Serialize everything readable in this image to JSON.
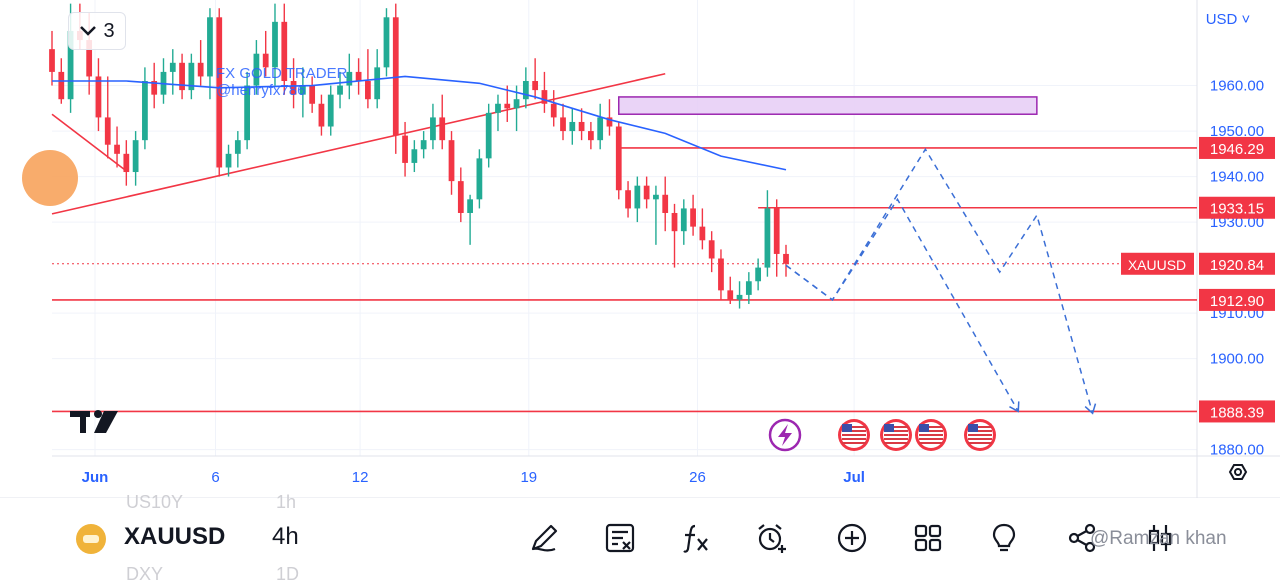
{
  "chart_data": {
    "type": "candlestick",
    "symbol": "XAUUSD",
    "timeframe": "4h",
    "currency": "USD",
    "y_ticks": [
      1960,
      1950,
      1940,
      1930,
      1910,
      1900,
      1880
    ],
    "ylim": [
      1878.6,
      1978.8
    ],
    "x_ticks": [
      {
        "label": "Jun",
        "pos": 0
      },
      {
        "label": "6",
        "pos": 5
      },
      {
        "label": "12",
        "pos": 11
      },
      {
        "label": "19",
        "pos": 18
      },
      {
        "label": "26",
        "pos": 25
      },
      {
        "label": "Jul",
        "pos": 31.5
      }
    ],
    "ohlc": [
      [
        1968.0,
        1972.0,
        1960.0,
        1963.0
      ],
      [
        1963.0,
        1966.0,
        1956.0,
        1957.0
      ],
      [
        1957.0,
        1978.0,
        1954.0,
        1972.0
      ],
      [
        1972.0,
        1978.0,
        1968.0,
        1970.0
      ],
      [
        1970.0,
        1976.0,
        1958.0,
        1962.0
      ],
      [
        1962.0,
        1966.0,
        1950.0,
        1953.0
      ],
      [
        1953.0,
        1962.0,
        1944.0,
        1947.0
      ],
      [
        1947.0,
        1951.0,
        1942.0,
        1945.0
      ],
      [
        1945.0,
        1948.0,
        1938.0,
        1941.0
      ],
      [
        1941.0,
        1950.0,
        1938.0,
        1948.0
      ],
      [
        1948.0,
        1964.0,
        1946.0,
        1961.0
      ],
      [
        1961.0,
        1965.0,
        1955.0,
        1958.0
      ],
      [
        1958.0,
        1966.0,
        1956.0,
        1963.0
      ],
      [
        1963.0,
        1968.0,
        1958.0,
        1965.0
      ],
      [
        1965.0,
        1967.0,
        1957.0,
        1959.0
      ],
      [
        1959.0,
        1967.0,
        1957.0,
        1965.0
      ],
      [
        1965.0,
        1970.0,
        1960.0,
        1962.0
      ],
      [
        1962.0,
        1977.0,
        1957.0,
        1975.0
      ],
      [
        1975.0,
        1977.0,
        1940.0,
        1942.0
      ],
      [
        1942.0,
        1947.0,
        1940.0,
        1945.0
      ],
      [
        1945.0,
        1950.0,
        1942.0,
        1948.0
      ],
      [
        1948.0,
        1963.0,
        1946.0,
        1960.0
      ],
      [
        1960.0,
        1970.0,
        1958.0,
        1967.0
      ],
      [
        1967.0,
        1972.0,
        1962.0,
        1964.0
      ],
      [
        1964.0,
        1978.0,
        1960.0,
        1974.0
      ],
      [
        1974.0,
        1978.0,
        1958.0,
        1961.0
      ],
      [
        1961.0,
        1966.0,
        1955.0,
        1958.0
      ],
      [
        1958.0,
        1964.0,
        1953.0,
        1960.0
      ],
      [
        1960.0,
        1962.0,
        1954.0,
        1956.0
      ],
      [
        1956.0,
        1958.0,
        1949.0,
        1951.0
      ],
      [
        1951.0,
        1960.0,
        1949.0,
        1958.0
      ],
      [
        1958.0,
        1963.0,
        1955.0,
        1960.0
      ],
      [
        1960.0,
        1967.0,
        1957.0,
        1963.0
      ],
      [
        1963.0,
        1966.0,
        1958.0,
        1961.0
      ],
      [
        1961.0,
        1968.0,
        1955.0,
        1957.0
      ],
      [
        1957.0,
        1968.0,
        1955.0,
        1964.0
      ],
      [
        1964.0,
        1977.0,
        1962.0,
        1975.0
      ],
      [
        1975.0,
        1978.0,
        1945.0,
        1949.0
      ],
      [
        1949.0,
        1952.0,
        1940.0,
        1943.0
      ],
      [
        1943.0,
        1948.0,
        1941.0,
        1946.0
      ],
      [
        1946.0,
        1950.0,
        1944.0,
        1948.0
      ],
      [
        1948.0,
        1956.0,
        1946.0,
        1953.0
      ],
      [
        1953.0,
        1958.0,
        1946.0,
        1948.0
      ],
      [
        1948.0,
        1950.0,
        1936.0,
        1939.0
      ],
      [
        1939.0,
        1942.0,
        1930.0,
        1932.0
      ],
      [
        1932.0,
        1936.0,
        1925.0,
        1935.0
      ],
      [
        1935.0,
        1946.0,
        1933.0,
        1944.0
      ],
      [
        1944.0,
        1956.0,
        1942.0,
        1954.0
      ],
      [
        1954.0,
        1958.0,
        1950.0,
        1956.0
      ],
      [
        1956.0,
        1960.0,
        1952.0,
        1955.0
      ],
      [
        1955.0,
        1960.0,
        1950.0,
        1957.0
      ],
      [
        1957.0,
        1964.0,
        1955.0,
        1961.0
      ],
      [
        1961.0,
        1966.0,
        1957.0,
        1959.0
      ],
      [
        1959.0,
        1963.0,
        1954.0,
        1956.0
      ],
      [
        1956.0,
        1959.0,
        1951.0,
        1953.0
      ],
      [
        1953.0,
        1956.0,
        1948.0,
        1950.0
      ],
      [
        1950.0,
        1955.0,
        1947.0,
        1952.0
      ],
      [
        1952.0,
        1955.0,
        1948.0,
        1950.0
      ],
      [
        1950.0,
        1952.0,
        1946.0,
        1948.0
      ],
      [
        1948.0,
        1956.0,
        1946.0,
        1953.0
      ],
      [
        1953.0,
        1957.0,
        1949.0,
        1951.0
      ],
      [
        1951.0,
        1952.0,
        1935.0,
        1937.0
      ],
      [
        1937.0,
        1939.0,
        1931.0,
        1933.0
      ],
      [
        1933.0,
        1940.0,
        1930.0,
        1938.0
      ],
      [
        1938.0,
        1940.0,
        1933.0,
        1935.0
      ],
      [
        1935.0,
        1938.0,
        1925.0,
        1936.0
      ],
      [
        1936.0,
        1940.0,
        1928.0,
        1932.0
      ],
      [
        1932.0,
        1934.0,
        1920.0,
        1928.0
      ],
      [
        1928.0,
        1935.0,
        1925.0,
        1933.0
      ],
      [
        1933.0,
        1936.0,
        1927.0,
        1929.0
      ],
      [
        1929.0,
        1933.0,
        1924.0,
        1926.0
      ],
      [
        1926.0,
        1928.0,
        1919.0,
        1922.0
      ],
      [
        1922.0,
        1924.0,
        1913.0,
        1915.0
      ],
      [
        1915.0,
        1918.0,
        1912.0,
        1913.0
      ],
      [
        1913.0,
        1917.0,
        1911.0,
        1914.0
      ],
      [
        1914.0,
        1919.0,
        1912.0,
        1917.0
      ],
      [
        1917.0,
        1922.0,
        1915.0,
        1920.0
      ],
      [
        1920.0,
        1937.0,
        1918.0,
        1933.0
      ],
      [
        1933.0,
        1935.0,
        1918.0,
        1923.0
      ],
      [
        1923.0,
        1925.0,
        1918.0,
        1920.84
      ]
    ],
    "candle_x_range": [
      0,
      79
    ],
    "candle_x_pos": [
      52,
      786
    ],
    "moving_average": [
      [
        0,
        1961
      ],
      [
        8,
        1961
      ],
      [
        18,
        1959.5
      ],
      [
        28,
        1960
      ],
      [
        38,
        1962
      ],
      [
        46,
        1960.5
      ],
      [
        52,
        1957.5
      ],
      [
        60,
        1952.5
      ],
      [
        66,
        1949.5
      ],
      [
        72,
        1944.5
      ],
      [
        79,
        1941.5
      ]
    ],
    "horizontal_lines": [
      {
        "price": 1946.29,
        "label": "1946.29",
        "from_index": 61
      },
      {
        "price": 1933.15,
        "label": "1933.15",
        "from_index": 76
      },
      {
        "price": 1912.9,
        "label": "1912.90",
        "from_index": 0
      },
      {
        "price": 1888.39,
        "label": "1888.39",
        "from_index": 0
      }
    ],
    "current_price": {
      "price": 1920.84,
      "label": "1920.84",
      "symbol_tag": "XAUUSD"
    },
    "trendlines": [
      {
        "from": [
          0,
          1931.8
        ],
        "to": [
          66,
          1962.6
        ]
      },
      {
        "from": [
          0,
          1953.7
        ],
        "to": [
          7.9,
          1941.4
        ]
      }
    ],
    "zone": {
      "from_index": 61,
      "to_index": 106,
      "top": 1957.5,
      "bottom": 1953.7
    },
    "projections": [
      [
        [
          79,
          1920.5
        ],
        [
          84,
          1912.9
        ],
        [
          94,
          1946
        ],
        [
          102,
          1919
        ],
        [
          106,
          1931.5
        ],
        [
          112,
          1888
        ]
      ],
      [
        [
          79,
          1920.5
        ],
        [
          84,
          1912.9
        ],
        [
          91,
          1935
        ],
        [
          104,
          1888.4
        ]
      ]
    ],
    "watermark": [
      "FX GOLD TRADER",
      "@henryfx786"
    ],
    "indicator_count": "3",
    "colors": {
      "up": "#22ab94",
      "down": "#f23645",
      "ma": "#2962ff",
      "level": "#f23645",
      "projection": "#3b6fd6",
      "zone_fill": "#e6ccf6",
      "zone_border": "#9c27b0",
      "axis_text": "#2962ff"
    }
  },
  "toolbar": {
    "symbol": "XAUUSD",
    "timeframe": "4h",
    "ghost_above": [
      "US10Y",
      "1h"
    ],
    "ghost_below": [
      "DXY",
      "1D"
    ],
    "user_watermark": "@Ramzan khan",
    "icons": [
      "drawing-pen-icon",
      "notes-icon",
      "indicators-fx-icon",
      "alert-clock-icon",
      "add-circle-icon",
      "layouts-grid-icon",
      "ideas-bulb-icon",
      "share-icon",
      "candles-icon"
    ]
  }
}
